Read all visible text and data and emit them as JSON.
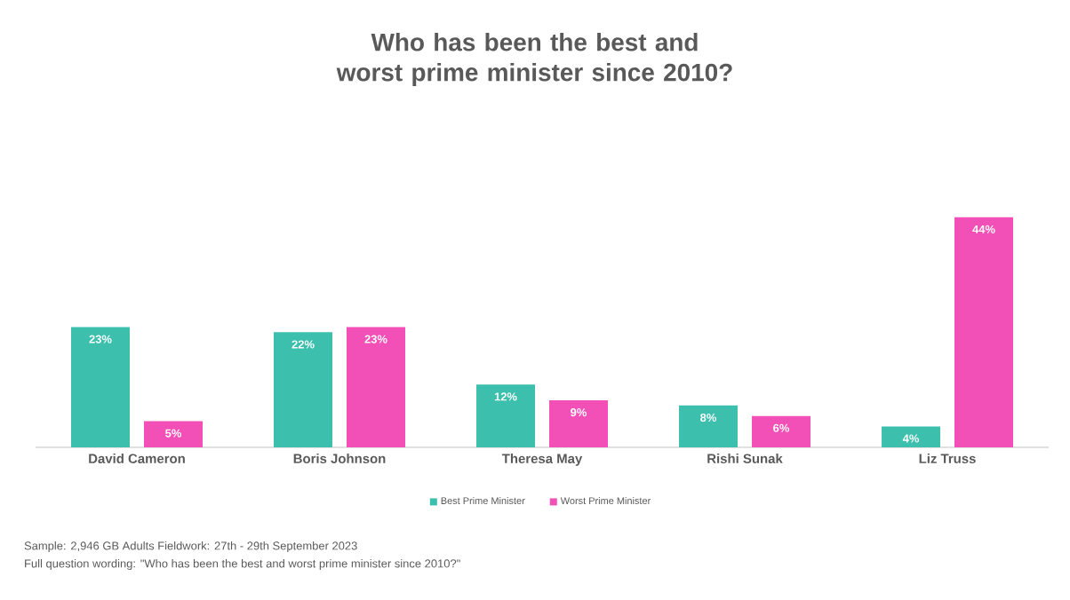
{
  "chart_data": {
    "type": "bar",
    "title": "Who has been the best and worst prime minister since 2010?",
    "categories": [
      "David Cameron",
      "Boris Johnson",
      "Theresa May",
      "Rishi Sunak",
      "Liz Truss"
    ],
    "series": [
      {
        "name": "Best Prime Minister",
        "color": "#3dbfad",
        "values": [
          23,
          22,
          12,
          8,
          4
        ],
        "value_labels": [
          "23%",
          "22%",
          "12%",
          "8%",
          "4%"
        ]
      },
      {
        "name": "Worst Prime Minister",
        "color": "#f24fb7",
        "values": [
          5,
          23,
          9,
          6,
          44
        ],
        "value_labels": [
          "5%",
          "23%",
          "9%",
          "6%",
          "44%"
        ]
      }
    ],
    "tick_labels": "x",
    "legend": "bottom",
    "annotations": [
      "Sample: 2,946 GB Adults  Fieldwork: 27th - 29th September 2023",
      "Full question wording: \"Who has been the best and worst prime minister since 2010?\""
    ]
  }
}
